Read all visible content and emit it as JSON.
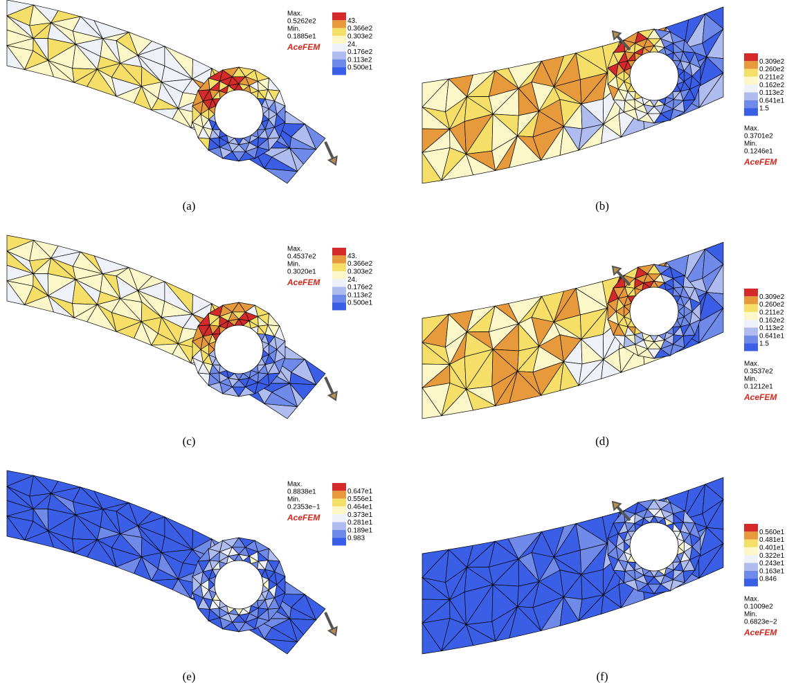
{
  "panels": [
    {
      "caption": "(a)",
      "max_label": "Max.",
      "max_value": "0.5262e2",
      "min_label": "Min.",
      "min_value": "0.1885e1",
      "brand": "AceFEM",
      "legend": [
        "43.",
        "0.366e2",
        "0.303e2",
        "24.",
        "0.176e2",
        "0.113e2",
        "0.500e1"
      ]
    },
    {
      "caption": "(b)",
      "max_label": "Max.",
      "max_value": "0.3701e2",
      "min_label": "Min.",
      "min_value": "0.1246e1",
      "brand": "AceFEM",
      "legend": [
        "0.309e2",
        "0.260e2",
        "0.211e2",
        "0.162e2",
        "0.113e2",
        "0.641e1",
        "1.5"
      ]
    },
    {
      "caption": "(c)",
      "max_label": "Max.",
      "max_value": "0.4537e2",
      "min_label": "Min.",
      "min_value": "0.3020e1",
      "brand": "AceFEM",
      "legend": [
        "43.",
        "0.366e2",
        "0.303e2",
        "24.",
        "0.176e2",
        "0.113e2",
        "0.500e1"
      ]
    },
    {
      "caption": "(d)",
      "max_label": "Max.",
      "max_value": "0.3537e2",
      "min_label": "Min.",
      "min_value": "0.1212e1",
      "brand": "AceFEM",
      "legend": [
        "0.309e2",
        "0.260e2",
        "0.211e2",
        "0.162e2",
        "0.113e2",
        "0.641e1",
        "1.5"
      ]
    },
    {
      "caption": "(e)",
      "max_label": "Max.",
      "max_value": "0.8838e1",
      "min_label": "Min.",
      "min_value": "0.2353e−1",
      "brand": "AceFEM",
      "legend": [
        "0.647e1",
        "0.556e1",
        "0.464e1",
        "0.373e1",
        "0.281e1",
        "0.189e1",
        "0.983"
      ]
    },
    {
      "caption": "(f)",
      "max_label": "Max.",
      "max_value": "0.1009e2",
      "min_label": "Min.",
      "min_value": "0.6823e−2",
      "brand": "AceFEM",
      "legend": [
        "0.560e1",
        "0.481e1",
        "0.401e1",
        "0.322e1",
        "0.243e1",
        "0.163e1",
        "0.846"
      ]
    }
  ]
}
